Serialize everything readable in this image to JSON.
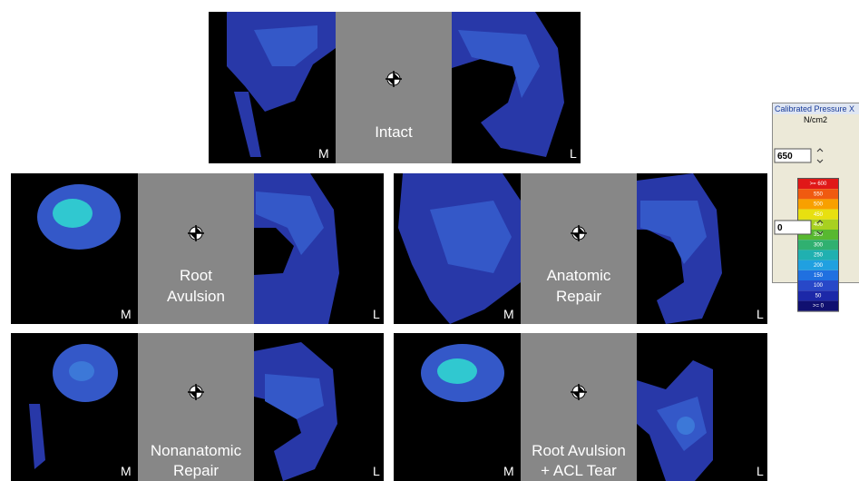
{
  "panels": [
    {
      "label_lines": [
        "Intact"
      ],
      "medial": "M",
      "lateral": "L"
    },
    {
      "label_lines": [
        "Root",
        "Avulsion"
      ],
      "medial": "M",
      "lateral": "L"
    },
    {
      "label_lines": [
        "Anatomic",
        "Repair"
      ],
      "medial": "M",
      "lateral": "L"
    },
    {
      "label_lines": [
        "Nonanatomic",
        "Repair"
      ],
      "medial": "M",
      "lateral": "L"
    },
    {
      "label_lines": [
        "Root Avulsion",
        "+ ACL Tear"
      ],
      "medial": "M",
      "lateral": "L"
    }
  ],
  "legend": {
    "title": "Calibrated Pressure X",
    "unit": "N/cm2",
    "max_input": "650",
    "min_input": "0",
    "scale": [
      {
        "label": ">= 600",
        "color": "#e01818"
      },
      {
        "label": "550",
        "color": "#f05a10"
      },
      {
        "label": "500",
        "color": "#f8a000"
      },
      {
        "label": "450",
        "color": "#e8e010"
      },
      {
        "label": "400",
        "color": "#a8d020"
      },
      {
        "label": "350",
        "color": "#58b830"
      },
      {
        "label": "300",
        "color": "#30b070"
      },
      {
        "label": "250",
        "color": "#20b0b0"
      },
      {
        "label": "200",
        "color": "#20a0e0"
      },
      {
        "label": "150",
        "color": "#2070e0"
      },
      {
        "label": "100",
        "color": "#2848c8"
      },
      {
        "label": "50",
        "color": "#1c28a8"
      },
      {
        "label": ">= 0",
        "color": "#101070"
      }
    ]
  }
}
